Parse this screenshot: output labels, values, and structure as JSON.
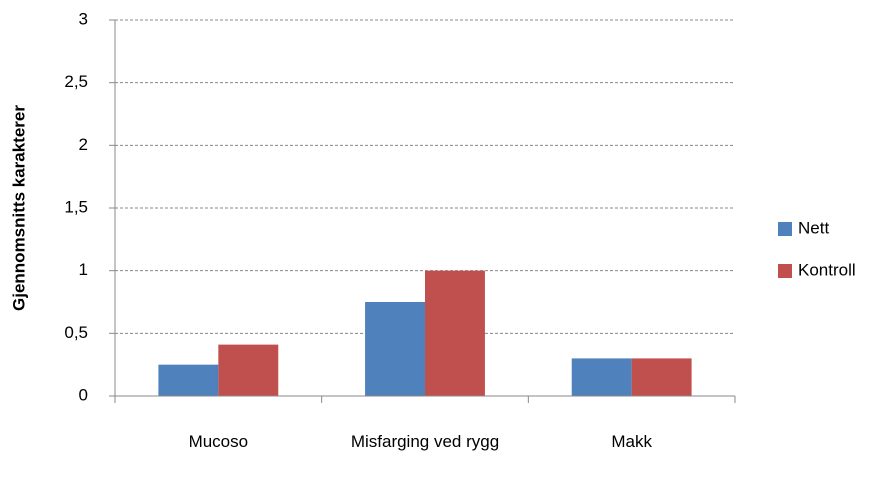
{
  "chart_data": {
    "type": "bar",
    "y_label": "Gjennomsnitts karakterer",
    "categories": [
      "Mucoso",
      "Misfarging ved rygg",
      "Makk"
    ],
    "series": [
      {
        "name": "Nett",
        "color": "#4f81bd",
        "values": [
          0.25,
          0.75,
          0.3
        ]
      },
      {
        "name": "Kontroll",
        "color": "#c0504d",
        "values": [
          0.41,
          1.0,
          0.3
        ]
      }
    ],
    "ylim": [
      0,
      3
    ],
    "yticks": [
      0,
      {
        "value": 0.5,
        "label": "0,5"
      },
      1,
      {
        "value": 1.5,
        "label": "1,5"
      },
      2,
      {
        "value": 2.5,
        "label": "2,5"
      },
      3
    ],
    "grid": true,
    "legend": "right"
  }
}
